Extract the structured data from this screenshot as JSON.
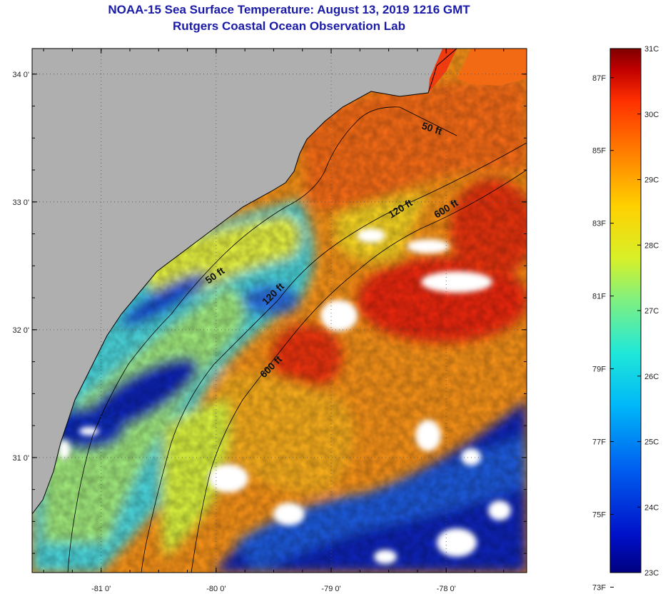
{
  "title": {
    "line1": "NOAA-15 Sea Surface Temperature:  August 13, 2019 1216 GMT",
    "line2": "Rutgers Coastal Ocean Observation Lab"
  },
  "map": {
    "lat_ticks": [
      "34 0'",
      "33 0'",
      "32 0'",
      "31 0'"
    ],
    "lon_ticks": [
      "-81 0'",
      "-80 0'",
      "-79 0'",
      "-78 0'"
    ],
    "lat_values": [
      34,
      33,
      32,
      31
    ],
    "lon_values": [
      -81,
      -80,
      -79,
      -78
    ],
    "lat_range": [
      30.1,
      34.2
    ],
    "lon_range": [
      -81.6,
      -77.3
    ],
    "contours": [
      {
        "label": "50 ft",
        "depth_ft": 50
      },
      {
        "label": "120 ft",
        "depth_ft": 120
      },
      {
        "label": "600 ft",
        "depth_ft": 600
      }
    ],
    "contour_labels": [
      {
        "text": "50 ft",
        "id": "c50a"
      },
      {
        "text": "50 ft",
        "id": "c50b"
      },
      {
        "text": "120 ft",
        "id": "c120a"
      },
      {
        "text": "120 ft",
        "id": "c120b"
      },
      {
        "text": "600 ft",
        "id": "c600a"
      },
      {
        "text": "600 ft",
        "id": "c600b"
      }
    ],
    "colors": {
      "land": "#afafaf",
      "coldest": "#0a18a8",
      "cold": "#2a7fe6",
      "cool": "#38d2e8",
      "mid": "#b6f07a",
      "warm": "#f5e01e",
      "hot": "#f58c14",
      "hottest": "#e8280e"
    }
  },
  "colorbar": {
    "fahrenheit": [
      "87F",
      "85F",
      "83F",
      "81F",
      "79F",
      "77F",
      "75F",
      "73F"
    ],
    "celsius": [
      "31C",
      "30C",
      "29C",
      "28C",
      "27C",
      "26C",
      "25C",
      "24C",
      "23C"
    ],
    "range_c": [
      23,
      31
    ],
    "stops": [
      "#00007f",
      "#0010c8",
      "#0060f0",
      "#00b8f8",
      "#20e8d8",
      "#80f080",
      "#d8f028",
      "#ffd000",
      "#ff8000",
      "#ff3000",
      "#c00000",
      "#7f0000"
    ]
  }
}
